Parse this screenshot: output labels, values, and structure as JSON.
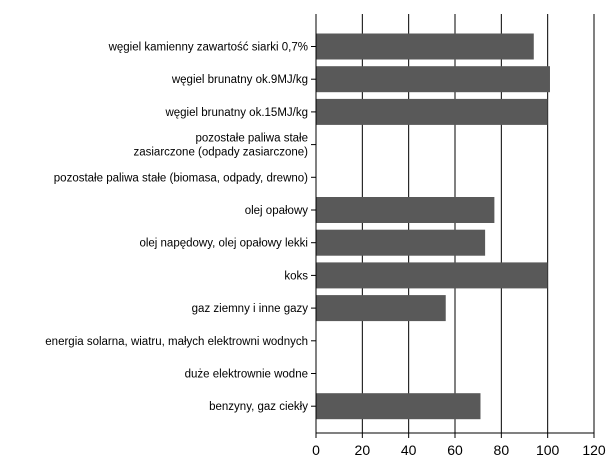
{
  "chart_data": {
    "type": "bar",
    "orientation": "horizontal",
    "title": "",
    "xlabel": "",
    "ylabel": "",
    "xlim": [
      0,
      120
    ],
    "x_ticks": [
      0,
      20,
      40,
      60,
      80,
      100,
      120
    ],
    "grid": true,
    "legend": "none",
    "categories": [
      [
        "węgiel kamienny zawartość siarki 0,7%"
      ],
      [
        "węgiel brunatny ok.9MJ/kg"
      ],
      [
        "węgiel brunatny ok.15MJ/kg"
      ],
      [
        "pozostałe paliwa stałe",
        "zasiarczone (odpady zasiarczone)"
      ],
      [
        "pozostałe paliwa stałe (biomasa, odpady, drewno)"
      ],
      [
        "olej opałowy"
      ],
      [
        "olej napędowy, olej opałowy lekki"
      ],
      [
        "koks"
      ],
      [
        "gaz ziemny i inne gazy"
      ],
      [
        "energia solarna, wiatru, małych elektrowni wodnych"
      ],
      [
        "duże elektrownie wodne"
      ],
      [
        "benzyny, gaz ciekły"
      ]
    ],
    "values": [
      94,
      101,
      100,
      0,
      0,
      77,
      73,
      100,
      56,
      0,
      0,
      71
    ],
    "colors": {
      "bar": "#595959",
      "axis": "#000000",
      "grid": "#000000"
    }
  }
}
